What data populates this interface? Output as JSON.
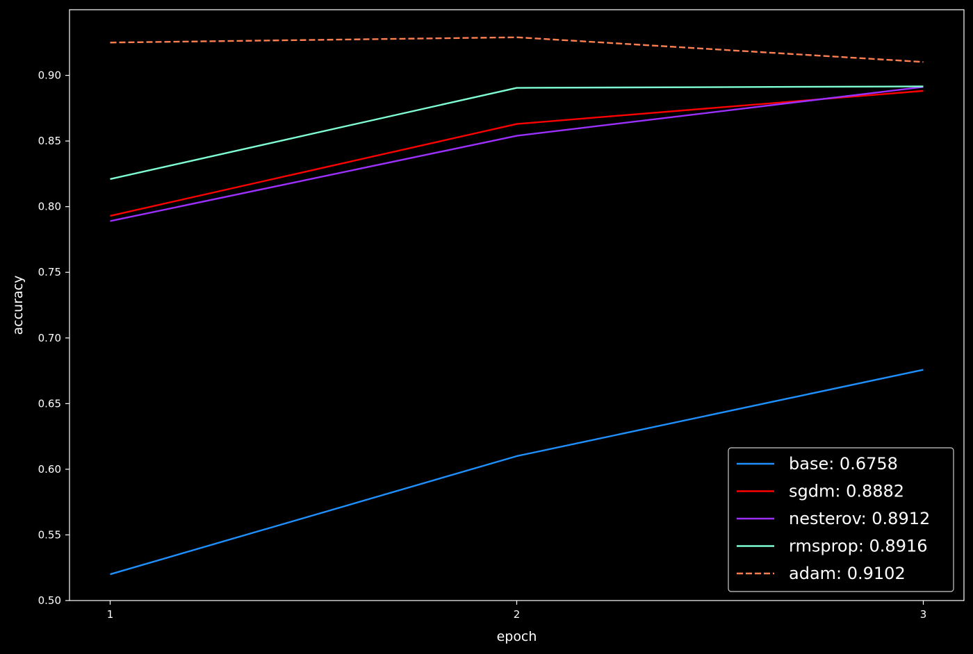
{
  "chart_data": {
    "type": "line",
    "title": "",
    "xlabel": "epoch",
    "ylabel": "accuracy",
    "x": [
      1,
      2,
      3
    ],
    "x_tick_labels": [
      "1",
      "2",
      "3"
    ],
    "xlim": [
      0.9,
      3.1
    ],
    "ylim": [
      0.5,
      0.95
    ],
    "y_ticks": [
      0.5,
      0.55,
      0.6,
      0.65,
      0.7,
      0.75,
      0.8,
      0.85,
      0.9
    ],
    "y_tick_labels": [
      "0.50",
      "0.55",
      "0.60",
      "0.65",
      "0.70",
      "0.75",
      "0.80",
      "0.85",
      "0.90"
    ],
    "grid": false,
    "background": "#000000",
    "axis_color": "#ffffff",
    "legend_position": "lower-right",
    "series": [
      {
        "name": "base: 0.6758",
        "values": [
          0.52,
          0.61,
          0.6758
        ],
        "color": "#1e90ff",
        "dash": "solid"
      },
      {
        "name": "sgdm: 0.8882",
        "values": [
          0.793,
          0.863,
          0.8882
        ],
        "color": "#ff0000",
        "dash": "solid"
      },
      {
        "name": "nesterov: 0.8912",
        "values": [
          0.789,
          0.854,
          0.8912
        ],
        "color": "#9b30ff",
        "dash": "solid"
      },
      {
        "name": "rmsprop: 0.8916",
        "values": [
          0.821,
          0.8905,
          0.8916
        ],
        "color": "#7fffd4",
        "dash": "solid"
      },
      {
        "name": "adam: 0.9102",
        "values": [
          0.925,
          0.929,
          0.9102
        ],
        "color": "#ff7f50",
        "dash": "dashed"
      }
    ]
  }
}
